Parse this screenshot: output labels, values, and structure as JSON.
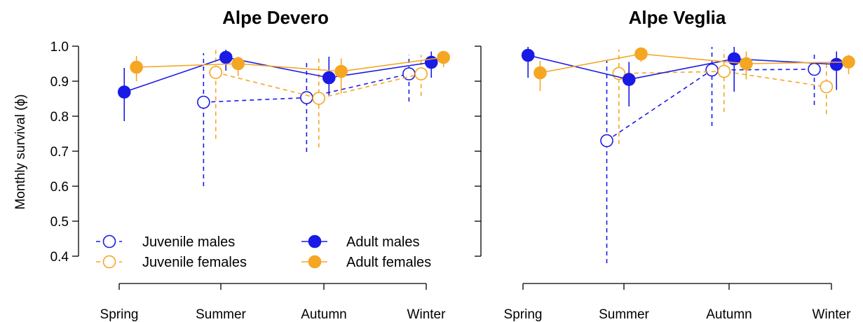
{
  "chart_data": [
    {
      "type": "line",
      "title": "Alpe Devero",
      "ylabel": "Monthly survival (ϕ)",
      "xlabel": "",
      "categories": [
        "Spring",
        "Summer",
        "Autumn",
        "Winter"
      ],
      "ylim": [
        0.4,
        1.0
      ],
      "yticks": [
        "0.4",
        "0.5",
        "0.6",
        "0.7",
        "0.8",
        "0.9",
        "1.0"
      ],
      "series": [
        {
          "name": "Juvenile males",
          "color": "#1a1ae6",
          "dashed": true,
          "filled": false,
          "offset": -0.17,
          "values": [
            null,
            0.84,
            0.853,
            0.921
          ],
          "lower": [
            null,
            0.6,
            0.698,
            0.842
          ],
          "upper": [
            null,
            0.98,
            0.955,
            0.975
          ]
        },
        {
          "name": "Juvenile females",
          "color": "#f5a623",
          "dashed": true,
          "filled": false,
          "offset": -0.05,
          "values": [
            null,
            0.925,
            0.851,
            0.921
          ],
          "lower": [
            null,
            0.735,
            0.711,
            0.858
          ],
          "upper": [
            null,
            0.99,
            0.965,
            0.975
          ]
        },
        {
          "name": "Adult males",
          "color": "#1a1ae6",
          "dashed": false,
          "filled": true,
          "offset": 0.05,
          "values": [
            0.869,
            0.968,
            0.91,
            0.954
          ],
          "lower": [
            0.786,
            0.93,
            0.86,
            0.91
          ],
          "upper": [
            0.938,
            0.99,
            0.97,
            0.985
          ]
        },
        {
          "name": "Adult females",
          "color": "#f5a623",
          "dashed": false,
          "filled": true,
          "offset": 0.17,
          "values": [
            0.94,
            0.95,
            0.928,
            0.968
          ],
          "lower": [
            0.9,
            0.915,
            0.865,
            0.94
          ],
          "upper": [
            0.972,
            0.97,
            0.965,
            0.985
          ]
        }
      ]
    },
    {
      "type": "line",
      "title": "Alpe Veglia",
      "ylabel": "",
      "xlabel": "",
      "categories": [
        "Spring",
        "Summer",
        "Autumn",
        "Winter"
      ],
      "ylim": [
        0.4,
        1.0
      ],
      "yticks": [],
      "series": [
        {
          "name": "Juvenile males",
          "color": "#1a1ae6",
          "dashed": true,
          "filled": false,
          "offset": -0.17,
          "values": [
            null,
            0.73,
            0.932,
            0.934
          ],
          "lower": [
            null,
            0.38,
            0.772,
            0.832
          ],
          "upper": [
            null,
            0.96,
            0.998,
            0.985
          ]
        },
        {
          "name": "Juvenile females",
          "color": "#f5a623",
          "dashed": true,
          "filled": false,
          "offset": -0.05,
          "values": [
            null,
            0.922,
            0.928,
            0.884
          ],
          "lower": [
            null,
            0.72,
            0.812,
            0.806
          ],
          "upper": [
            null,
            0.99,
            0.99,
            0.95
          ]
        },
        {
          "name": "Adult males",
          "color": "#1a1ae6",
          "dashed": false,
          "filled": true,
          "offset": 0.05,
          "values": [
            0.974,
            0.905,
            0.964,
            0.948
          ],
          "lower": [
            0.91,
            0.828,
            0.87,
            0.875
          ],
          "upper": [
            0.998,
            0.955,
            0.998,
            0.985
          ]
        },
        {
          "name": "Adult females",
          "color": "#f5a623",
          "dashed": false,
          "filled": true,
          "offset": 0.17,
          "values": [
            0.924,
            0.978,
            0.95,
            0.955
          ],
          "lower": [
            0.872,
            0.955,
            0.905,
            0.92
          ],
          "upper": [
            0.958,
            0.99,
            0.985,
            0.975
          ]
        }
      ]
    }
  ],
  "legend": {
    "items": [
      {
        "label": "Juvenile males",
        "series": 0
      },
      {
        "label": "Juvenile females",
        "series": 1
      },
      {
        "label": "Adult males",
        "series": 2
      },
      {
        "label": "Adult females",
        "series": 3
      }
    ]
  }
}
